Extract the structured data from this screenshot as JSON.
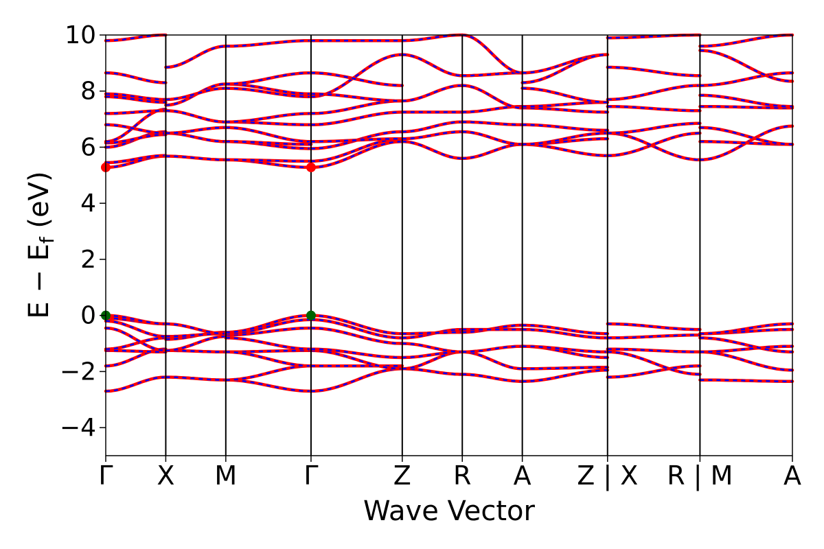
{
  "chart_data": {
    "type": "line",
    "title": "",
    "xlabel": "Wave Vector",
    "ylabel_parts": {
      "main": "E − E",
      "sub": "f",
      "unit": " (eV)"
    },
    "ylim": [
      -5,
      10
    ],
    "yticks": [
      {
        "value": -4,
        "label": "−4"
      },
      {
        "value": -2,
        "label": "−2"
      },
      {
        "value": 0,
        "label": "0"
      },
      {
        "value": 2,
        "label": "2"
      },
      {
        "value": 4,
        "label": "4"
      },
      {
        "value": 6,
        "label": "6"
      },
      {
        "value": 8,
        "label": "8"
      },
      {
        "value": 10,
        "label": "10"
      }
    ],
    "kpoints": [
      {
        "label": "Γ",
        "k": 0.0
      },
      {
        "label": "X",
        "k": 0.5
      },
      {
        "label": "M",
        "k": 1.0
      },
      {
        "label": "Γ",
        "k": 1.71
      },
      {
        "label": "Z",
        "k": 2.47
      },
      {
        "label": "R",
        "k": 2.97
      },
      {
        "label": "A",
        "k": 3.47
      },
      {
        "label": "Z|X",
        "k": 4.18
      },
      {
        "label": "R|M",
        "k": 4.95
      },
      {
        "label": "A",
        "k": 5.72
      }
    ],
    "segments": [
      {
        "name": "Γ-X",
        "start": 0,
        "end": 1,
        "bands": [
          [
            -2.7,
            -2.2
          ],
          [
            -1.8,
            -1.2
          ],
          [
            -1.25,
            -1.3
          ],
          [
            -1.2,
            -0.8
          ],
          [
            -0.45,
            -1.25
          ],
          [
            -0.2,
            -0.75
          ],
          [
            -0.1,
            -0.3
          ],
          [
            0.0,
            -0.3
          ],
          [
            5.28,
            5.68
          ],
          [
            5.45,
            5.7
          ],
          [
            6.0,
            6.55
          ],
          [
            6.15,
            6.45
          ],
          [
            6.2,
            7.35
          ],
          [
            6.8,
            6.5
          ],
          [
            7.2,
            7.3
          ],
          [
            7.8,
            7.6
          ],
          [
            7.9,
            7.7
          ],
          [
            8.65,
            8.3
          ],
          [
            9.8,
            10.0
          ]
        ]
      },
      {
        "name": "X-M",
        "start": 1,
        "end": 2,
        "bands": [
          [
            -2.2,
            -2.3
          ],
          [
            -1.25,
            -1.3
          ],
          [
            -1.25,
            -0.75
          ],
          [
            -0.85,
            -0.6
          ],
          [
            -0.75,
            -0.65
          ],
          [
            -0.3,
            -0.65
          ],
          [
            5.68,
            5.55
          ],
          [
            6.5,
            6.2
          ],
          [
            6.5,
            6.7
          ],
          [
            7.3,
            6.9
          ],
          [
            7.5,
            8.25
          ],
          [
            7.7,
            8.1
          ],
          [
            8.85,
            9.6
          ]
        ]
      },
      {
        "name": "M-Γ",
        "start": 2,
        "end": 3,
        "bands": [
          [
            -2.3,
            -2.7
          ],
          [
            -2.3,
            -1.8
          ],
          [
            -1.3,
            -1.25
          ],
          [
            -1.3,
            -1.8
          ],
          [
            -0.8,
            -1.2
          ],
          [
            -0.7,
            -0.45
          ],
          [
            -0.65,
            -0.15
          ],
          [
            -0.6,
            0.0
          ],
          [
            5.55,
            5.28
          ],
          [
            5.55,
            5.5
          ],
          [
            6.2,
            5.95
          ],
          [
            6.2,
            6.1
          ],
          [
            6.7,
            6.2
          ],
          [
            6.9,
            6.8
          ],
          [
            6.9,
            7.2
          ],
          [
            8.1,
            7.8
          ],
          [
            8.25,
            7.9
          ],
          [
            8.25,
            8.65
          ],
          [
            9.6,
            9.8
          ]
        ]
      },
      {
        "name": "Γ-Z",
        "start": 3,
        "end": 4,
        "bands": [
          [
            -2.7,
            -1.9
          ],
          [
            -1.8,
            -1.8
          ],
          [
            -1.25,
            -1.9
          ],
          [
            -1.2,
            -1.5
          ],
          [
            -0.45,
            -1.0
          ],
          [
            -0.15,
            -0.8
          ],
          [
            0.0,
            -0.65
          ],
          [
            5.28,
            6.2
          ],
          [
            5.5,
            6.3
          ],
          [
            5.95,
            6.55
          ],
          [
            6.2,
            6.3
          ],
          [
            6.8,
            7.25
          ],
          [
            7.2,
            7.65
          ],
          [
            7.8,
            9.3
          ],
          [
            7.9,
            7.65
          ],
          [
            8.65,
            8.2
          ],
          [
            9.8,
            9.8
          ]
        ]
      },
      {
        "name": "Z-R",
        "start": 4,
        "end": 5,
        "bands": [
          [
            -1.9,
            -2.1
          ],
          [
            -1.9,
            -1.3
          ],
          [
            -1.5,
            -1.3
          ],
          [
            -1.0,
            -1.3
          ],
          [
            -0.8,
            -0.5
          ],
          [
            -0.65,
            -0.6
          ],
          [
            6.2,
            5.6
          ],
          [
            6.3,
            6.55
          ],
          [
            6.55,
            6.9
          ],
          [
            7.25,
            7.25
          ],
          [
            7.65,
            8.2
          ],
          [
            9.3,
            8.55
          ],
          [
            9.8,
            10.0
          ]
        ]
      },
      {
        "name": "R-A",
        "start": 5,
        "end": 6,
        "bands": [
          [
            -2.1,
            -2.35
          ],
          [
            -1.3,
            -1.9
          ],
          [
            -1.3,
            -1.1
          ],
          [
            -0.6,
            -0.35
          ],
          [
            -0.5,
            -0.5
          ],
          [
            5.6,
            6.1
          ],
          [
            6.55,
            6.1
          ],
          [
            6.9,
            6.8
          ],
          [
            7.25,
            7.45
          ],
          [
            8.2,
            7.4
          ],
          [
            8.55,
            8.65
          ],
          [
            10.0,
            8.65
          ]
        ]
      },
      {
        "name": "A-Z",
        "start": 6,
        "end": 7,
        "bands": [
          [
            -2.35,
            -1.95
          ],
          [
            -1.9,
            -1.85
          ],
          [
            -1.1,
            -1.5
          ],
          [
            -1.1,
            -1.3
          ],
          [
            -0.5,
            -0.8
          ],
          [
            -0.35,
            -0.65
          ],
          [
            6.1,
            6.3
          ],
          [
            6.1,
            5.7
          ],
          [
            6.1,
            6.5
          ],
          [
            6.8,
            6.6
          ],
          [
            7.4,
            7.25
          ],
          [
            7.45,
            7.6
          ],
          [
            8.1,
            7.6
          ],
          [
            8.65,
            9.3
          ],
          [
            8.3,
            9.3
          ]
        ]
      },
      {
        "name": "X-R",
        "start": 7,
        "end": 8,
        "bands": [
          [
            -2.2,
            -1.8
          ],
          [
            -1.3,
            -2.1
          ],
          [
            -1.2,
            -1.3
          ],
          [
            -0.8,
            -0.7
          ],
          [
            -0.3,
            -0.5
          ],
          [
            5.7,
            6.5
          ],
          [
            6.5,
            5.55
          ],
          [
            6.5,
            6.85
          ],
          [
            7.45,
            7.3
          ],
          [
            7.7,
            8.2
          ],
          [
            8.85,
            8.55
          ],
          [
            9.9,
            10.0
          ]
        ]
      },
      {
        "name": "M-A",
        "start": 8,
        "end": 9,
        "bands": [
          [
            -2.3,
            -2.35
          ],
          [
            -1.3,
            -1.95
          ],
          [
            -1.3,
            -1.1
          ],
          [
            -0.8,
            -1.3
          ],
          [
            -0.65,
            -0.5
          ],
          [
            -0.65,
            -0.3
          ],
          [
            5.55,
            6.75
          ],
          [
            6.2,
            6.1
          ],
          [
            6.7,
            6.1
          ],
          [
            7.45,
            7.4
          ],
          [
            7.85,
            7.45
          ],
          [
            8.2,
            8.65
          ],
          [
            9.45,
            8.35
          ],
          [
            9.6,
            10.0
          ]
        ]
      }
    ],
    "cbm_value": 5.28,
    "vbm_value": 0.0,
    "band_color": "#ff0000",
    "overlay_color": "#0000ff",
    "cbm_color": "#ff0000",
    "vbm_color": "#006400",
    "grid": false,
    "legend": "none"
  }
}
